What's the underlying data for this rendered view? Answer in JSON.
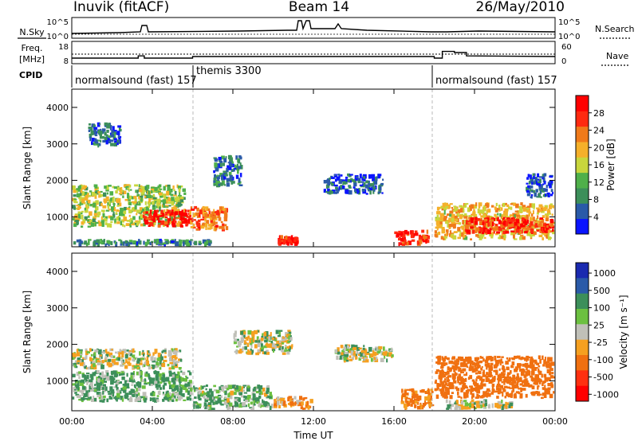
{
  "header": {
    "station": "Inuvik (fitACF)",
    "beam": "Beam 14",
    "date": "26/May/2010"
  },
  "panels": {
    "nsky": {
      "label": "N.Sky",
      "right_label": "N.Search",
      "left_ticks": [
        "10^5",
        "10^0"
      ],
      "right_ticks": [
        "10^5",
        "10^0"
      ]
    },
    "freq": {
      "label_line1": "Freq.",
      "label_line2": "[MHz]",
      "left_ticks": [
        "18",
        "8"
      ],
      "right_ticks": [
        "60",
        "0"
      ],
      "right_label": "Nave"
    },
    "cpid": {
      "label": "CPID",
      "segments": [
        "normalsound (fast) 157",
        "themis 3300",
        "normalsound (fast) 157"
      ]
    }
  },
  "axes": {
    "xlabel": "Time UT",
    "xticks": [
      "00:00",
      "04:00",
      "08:00",
      "12:00",
      "16:00",
      "20:00",
      "00:00"
    ],
    "ylabel": "Slant Range [km]",
    "yticks": [
      "1000",
      "2000",
      "3000",
      "4000"
    ]
  },
  "power_colorbar": {
    "label": "Power [dB]",
    "ticks": [
      "4",
      "8",
      "12",
      "16",
      "20",
      "24",
      "28"
    ],
    "colors": [
      "#0a14ff",
      "#2a5aa8",
      "#3c8f5a",
      "#4fb04a",
      "#c8d63c",
      "#f5b02a",
      "#f07a1a",
      "#ff2a10",
      "#ff0000"
    ]
  },
  "velocity_colorbar": {
    "label": "Velocity [m s⁻¹]",
    "ticks": [
      "1000",
      "500",
      "100",
      "25",
      "-25",
      "-100",
      "-500",
      "-1000"
    ],
    "colors": [
      "#1a2ab0",
      "#2a5aa8",
      "#3c8f5a",
      "#6cc040",
      "#c0c0b8",
      "#f5a020",
      "#f07010",
      "#ff3010",
      "#ff0000"
    ]
  },
  "chart_data": [
    {
      "type": "heatmap",
      "title": "Power",
      "x_range_hours": [
        0,
        24
      ],
      "y_range_km": [
        180,
        4500
      ],
      "clim_db": [
        0,
        30
      ],
      "regions": [
        {
          "t0": 0.0,
          "t1": 5.7,
          "r0": 700,
          "r1": 1900,
          "value": 14
        },
        {
          "t0": 3.5,
          "t1": 6.0,
          "r0": 700,
          "r1": 1200,
          "value": 27
        },
        {
          "t0": 5.8,
          "t1": 7.8,
          "r0": 600,
          "r1": 1300,
          "value": 22
        },
        {
          "t0": 0.0,
          "t1": 7.0,
          "r0": 180,
          "r1": 400,
          "value": 8
        },
        {
          "t0": 10.2,
          "t1": 11.3,
          "r0": 200,
          "r1": 500,
          "value": 28
        },
        {
          "t0": 16.0,
          "t1": 17.8,
          "r0": 200,
          "r1": 650,
          "value": 26
        },
        {
          "t0": 18.0,
          "t1": 24.0,
          "r0": 350,
          "r1": 1400,
          "value": 18
        },
        {
          "t0": 19.5,
          "t1": 24.0,
          "r0": 500,
          "r1": 1000,
          "value": 26
        },
        {
          "t0": 12.5,
          "t1": 15.5,
          "r0": 1600,
          "r1": 2200,
          "value": 5
        },
        {
          "t0": 7.0,
          "t1": 8.5,
          "r0": 1800,
          "r1": 2700,
          "value": 7
        },
        {
          "t0": 0.8,
          "t1": 2.5,
          "r0": 2900,
          "r1": 3600,
          "value": 6
        },
        {
          "t0": 22.5,
          "t1": 24.0,
          "r0": 1500,
          "r1": 2200,
          "value": 5
        }
      ]
    },
    {
      "type": "heatmap",
      "title": "Velocity",
      "x_range_hours": [
        0,
        24
      ],
      "y_range_km": [
        180,
        4500
      ],
      "clim_ms": [
        -1000,
        1000
      ],
      "regions": [
        {
          "t0": 0.0,
          "t1": 5.5,
          "r0": 1300,
          "r1": 1900,
          "value": 0
        },
        {
          "t0": 0.0,
          "t1": 6.0,
          "r0": 400,
          "r1": 1300,
          "value": 80
        },
        {
          "t0": 6.0,
          "t1": 10.0,
          "r0": 200,
          "r1": 900,
          "value": 60
        },
        {
          "t0": 8.0,
          "t1": 11.0,
          "r0": 1700,
          "r1": 2400,
          "value": 0
        },
        {
          "t0": 10.0,
          "t1": 12.0,
          "r0": 200,
          "r1": 600,
          "value": -80
        },
        {
          "t0": 13.0,
          "t1": 16.0,
          "r0": 1500,
          "r1": 2000,
          "value": 0
        },
        {
          "t0": 16.3,
          "t1": 18.0,
          "r0": 200,
          "r1": 800,
          "value": -120
        },
        {
          "t0": 18.0,
          "t1": 24.0,
          "r0": 500,
          "r1": 1700,
          "value": -400
        },
        {
          "t0": 18.5,
          "t1": 22.0,
          "r0": 200,
          "r1": 500,
          "value": 0
        }
      ]
    },
    {
      "type": "line",
      "title": "Freq.",
      "x_range_hours": [
        0,
        24
      ],
      "ylim_mhz": [
        8,
        18
      ],
      "x": [
        0,
        3.3,
        3.3,
        3.6,
        3.6,
        6.0,
        6.0,
        18.0,
        18.0,
        18.4,
        18.4,
        19.0,
        19.0,
        19.6,
        19.6,
        24
      ],
      "values": [
        10.5,
        10.5,
        11.5,
        11.5,
        10.5,
        10.5,
        11.2,
        11.2,
        10.5,
        10.5,
        13.5,
        13.5,
        13.0,
        13.0,
        11.5,
        11.2
      ]
    }
  ]
}
